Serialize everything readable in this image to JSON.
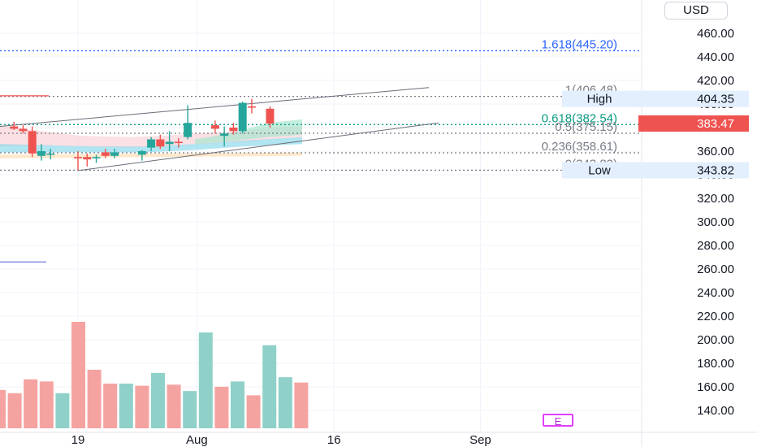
{
  "currency": "USD",
  "colors": {
    "up": "#26a69a",
    "down": "#ef5350",
    "up_volume": "#8fd1c9",
    "down_volume": "#f5a3a1",
    "fib_extension": "#2962ff",
    "fib_golden": "#089981",
    "fib_gray": "#787b86",
    "channel": "#6a6d78",
    "high_low_tag": "#e3effd",
    "earnings": "#e040fb"
  },
  "earnings_marker": "E",
  "chart_data": {
    "type": "candlestick",
    "price_axis": {
      "ticks": [
        140,
        160,
        180,
        200,
        220,
        240,
        260,
        280,
        300,
        320,
        340,
        360,
        380,
        400,
        420,
        440,
        460
      ],
      "tick_labels": [
        "140.00",
        "160.00",
        "180.00",
        "200.00",
        "220.00",
        "240.00",
        "260.00",
        "280.00",
        "300.00",
        "320.00",
        "340.00",
        "360.00",
        "380.00",
        "400.00",
        "420.00",
        "440.00",
        "460.00"
      ],
      "ylim": [
        132,
        482
      ]
    },
    "time_axis": {
      "tick_labels": [
        "19",
        "Aug",
        "16",
        "Sep"
      ],
      "tick_days": [
        19,
        32,
        47,
        63
      ]
    },
    "last_price": {
      "value": 383.47,
      "label": "383.47"
    },
    "high": {
      "label": "High",
      "value": 404.35,
      "value_label": "404.35"
    },
    "low": {
      "label": "Low",
      "value": 343.82,
      "value_label": "343.82"
    },
    "fibonacci": [
      {
        "ratio": "1.618",
        "value": 445.2,
        "label": "1.618(445.20)"
      },
      {
        "ratio": "1",
        "value": 406.48,
        "label": "1(406.48)"
      },
      {
        "ratio": "0.618",
        "value": 382.54,
        "label": "0.618(382.54)"
      },
      {
        "ratio": "0.5",
        "value": 375.15,
        "label": "0.5(375.15)"
      },
      {
        "ratio": "0.236",
        "value": 358.61,
        "label": "0.236(358.61)"
      },
      {
        "ratio": "0",
        "value": 343.82,
        "label": "0(343.82)"
      }
    ],
    "candles": [
      {
        "day": 12,
        "open": 381,
        "high": 385,
        "low": 378,
        "close": 379
      },
      {
        "day": 13,
        "open": 379,
        "high": 382,
        "low": 375,
        "close": 377
      },
      {
        "day": 14,
        "open": 377,
        "high": 381,
        "low": 355,
        "close": 358
      },
      {
        "day": 15,
        "open": 356,
        "high": 366,
        "low": 352,
        "close": 360
      },
      {
        "day": 16,
        "open": 358,
        "high": 362,
        "low": 353,
        "close": 358
      },
      {
        "day": 19,
        "open": 355,
        "high": 360,
        "low": 343.82,
        "close": 354
      },
      {
        "day": 20,
        "open": 355,
        "high": 358,
        "low": 347,
        "close": 353
      },
      {
        "day": 21,
        "open": 355,
        "high": 357,
        "low": 350,
        "close": 355
      },
      {
        "day": 22,
        "open": 359,
        "high": 362,
        "low": 354,
        "close": 356
      },
      {
        "day": 23,
        "open": 356,
        "high": 362,
        "low": 354,
        "close": 359
      },
      {
        "day": 26,
        "open": 357,
        "high": 361,
        "low": 352,
        "close": 360
      },
      {
        "day": 27,
        "open": 363,
        "high": 372,
        "low": 360,
        "close": 370
      },
      {
        "day": 28,
        "open": 370,
        "high": 374,
        "low": 362,
        "close": 364
      },
      {
        "day": 29,
        "open": 366,
        "high": 377,
        "low": 360,
        "close": 368
      },
      {
        "day": 30,
        "open": 368,
        "high": 371,
        "low": 363,
        "close": 367
      },
      {
        "day": 31,
        "open": 372,
        "high": 399,
        "low": 370,
        "close": 384
      },
      {
        "day": 34,
        "open": 382,
        "high": 386,
        "low": 375,
        "close": 379
      },
      {
        "day": 35,
        "open": 373,
        "high": 381,
        "low": 364,
        "close": 375
      },
      {
        "day": 36,
        "open": 380,
        "high": 384,
        "low": 374,
        "close": 377
      },
      {
        "day": 37,
        "open": 377,
        "high": 402,
        "low": 375,
        "close": 401
      },
      {
        "day": 38,
        "open": 398,
        "high": 404.35,
        "low": 392,
        "close": 397
      },
      {
        "day": 40,
        "open": 396,
        "high": 398,
        "low": 380,
        "close": 383.47
      }
    ],
    "volume": [
      {
        "day": 9,
        "value": 0.36,
        "up": false
      },
      {
        "day": 10,
        "value": 0.33,
        "up": false
      },
      {
        "day": 11,
        "value": 0.46,
        "up": false
      },
      {
        "day": 12,
        "value": 0.44,
        "up": false
      },
      {
        "day": 13,
        "value": 0.33,
        "up": true
      },
      {
        "day": 14,
        "value": 1.0,
        "up": false
      },
      {
        "day": 15,
        "value": 0.55,
        "up": false
      },
      {
        "day": 16,
        "value": 0.42,
        "up": false
      },
      {
        "day": 17,
        "value": 0.42,
        "up": true
      },
      {
        "day": 18,
        "value": 0.4,
        "up": false
      },
      {
        "day": 19,
        "value": 0.52,
        "up": true
      },
      {
        "day": 20,
        "value": 0.41,
        "up": false
      },
      {
        "day": 21,
        "value": 0.35,
        "up": true
      },
      {
        "day": 22,
        "value": 0.9,
        "up": true
      },
      {
        "day": 23,
        "value": 0.39,
        "up": false
      },
      {
        "day": 24,
        "value": 0.44,
        "up": true
      },
      {
        "day": 25,
        "value": 0.31,
        "up": false
      },
      {
        "day": 26,
        "value": 0.78,
        "up": true
      },
      {
        "day": 27,
        "value": 0.48,
        "up": true
      },
      {
        "day": 28,
        "value": 0.43,
        "up": false
      }
    ],
    "volume_day_offset": 12
  }
}
